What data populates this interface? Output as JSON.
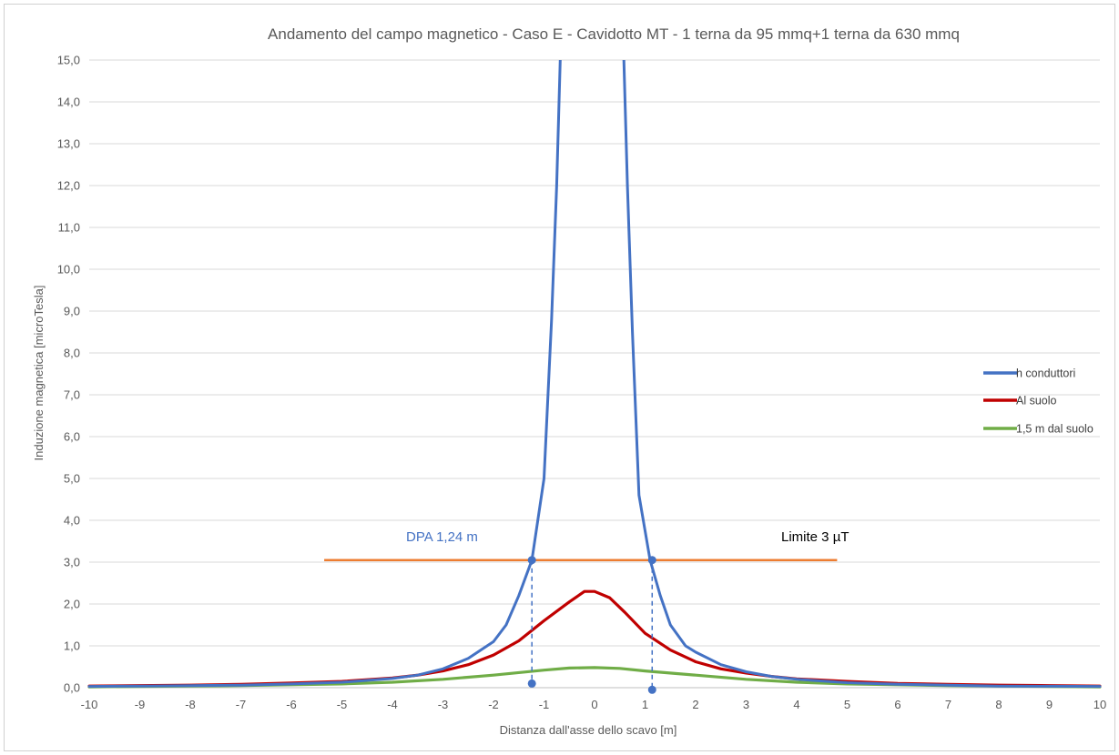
{
  "chart_data": {
    "type": "line",
    "title": "Andamento del  campo magnetico - Caso E - Cavidotto MT - 1 terna da 95 mmq+1 terna da 630 mmq",
    "xlabel": "Distanza dall'asse dello scavo [m]",
    "ylabel": "Induzione magnetica [microTesla]",
    "xlim": [
      -10,
      10
    ],
    "ylim": [
      0,
      15
    ],
    "x_ticks": [
      "-10",
      "-9",
      "-8",
      "-7",
      "-6",
      "-5",
      "-4",
      "-3",
      "-2",
      "-1",
      "0",
      "1",
      "2",
      "3",
      "4",
      "5",
      "6",
      "7",
      "8",
      "9",
      "10"
    ],
    "y_ticks": [
      "0,0",
      "1,0",
      "2,0",
      "3,0",
      "4,0",
      "5,0",
      "6,0",
      "7,0",
      "8,0",
      "9,0",
      "10,0",
      "11,0",
      "12,0",
      "13,0",
      "14,0",
      "15,0"
    ],
    "grid": "horizontal",
    "legend_position": "right",
    "series": [
      {
        "name": "h conduttori",
        "color": "#4472c4",
        "points": [
          [
            -10,
            0.03
          ],
          [
            -9,
            0.04
          ],
          [
            -8,
            0.05
          ],
          [
            -7,
            0.06
          ],
          [
            -6,
            0.09
          ],
          [
            -5,
            0.13
          ],
          [
            -4,
            0.22
          ],
          [
            -3.5,
            0.3
          ],
          [
            -3,
            0.45
          ],
          [
            -2.5,
            0.7
          ],
          [
            -2,
            1.1
          ],
          [
            -1.75,
            1.5
          ],
          [
            -1.5,
            2.2
          ],
          [
            -1.24,
            3.05
          ],
          [
            -1.0,
            5.0
          ],
          [
            -0.85,
            8.8
          ],
          [
            -0.75,
            12.0
          ],
          [
            -0.68,
            15.0
          ],
          [
            null,
            null
          ],
          [
            0.58,
            15.0
          ],
          [
            0.65,
            12.0
          ],
          [
            0.75,
            8.5
          ],
          [
            0.88,
            4.6
          ],
          [
            1.1,
            3.05
          ],
          [
            1.3,
            2.2
          ],
          [
            1.5,
            1.5
          ],
          [
            1.8,
            1.0
          ],
          [
            2.0,
            0.85
          ],
          [
            2.5,
            0.55
          ],
          [
            3,
            0.38
          ],
          [
            3.5,
            0.27
          ],
          [
            4,
            0.2
          ],
          [
            5,
            0.12
          ],
          [
            6,
            0.08
          ],
          [
            7,
            0.06
          ],
          [
            8,
            0.04
          ],
          [
            9,
            0.035
          ],
          [
            10,
            0.03
          ]
        ]
      },
      {
        "name": "Al suolo",
        "color": "#c00000",
        "points": [
          [
            -10,
            0.04
          ],
          [
            -9,
            0.05
          ],
          [
            -8,
            0.06
          ],
          [
            -7,
            0.08
          ],
          [
            -6,
            0.11
          ],
          [
            -5,
            0.15
          ],
          [
            -4,
            0.23
          ],
          [
            -3.5,
            0.3
          ],
          [
            -3,
            0.4
          ],
          [
            -2.5,
            0.55
          ],
          [
            -2,
            0.78
          ],
          [
            -1.5,
            1.12
          ],
          [
            -1,
            1.6
          ],
          [
            -0.5,
            2.05
          ],
          [
            -0.2,
            2.3
          ],
          [
            0,
            2.3
          ],
          [
            0.3,
            2.15
          ],
          [
            0.6,
            1.8
          ],
          [
            1,
            1.3
          ],
          [
            1.5,
            0.9
          ],
          [
            2,
            0.62
          ],
          [
            2.5,
            0.45
          ],
          [
            3,
            0.35
          ],
          [
            3.5,
            0.27
          ],
          [
            4,
            0.21
          ],
          [
            5,
            0.15
          ],
          [
            6,
            0.1
          ],
          [
            7,
            0.08
          ],
          [
            8,
            0.06
          ],
          [
            9,
            0.05
          ],
          [
            10,
            0.04
          ]
        ]
      },
      {
        "name": "1,5 m dal suolo",
        "color": "#70ad47",
        "points": [
          [
            -10,
            0.02
          ],
          [
            -9,
            0.03
          ],
          [
            -8,
            0.04
          ],
          [
            -7,
            0.05
          ],
          [
            -6,
            0.07
          ],
          [
            -5,
            0.09
          ],
          [
            -4,
            0.13
          ],
          [
            -3,
            0.2
          ],
          [
            -2,
            0.3
          ],
          [
            -1,
            0.42
          ],
          [
            -0.5,
            0.47
          ],
          [
            0,
            0.48
          ],
          [
            0.5,
            0.46
          ],
          [
            1,
            0.4
          ],
          [
            2,
            0.3
          ],
          [
            3,
            0.2
          ],
          [
            4,
            0.13
          ],
          [
            5,
            0.09
          ],
          [
            6,
            0.07
          ],
          [
            7,
            0.05
          ],
          [
            8,
            0.04
          ],
          [
            9,
            0.03
          ],
          [
            10,
            0.02
          ]
        ]
      }
    ],
    "limit_line": {
      "y": 3.05,
      "x_from": -5.35,
      "x_to": 4.8,
      "color": "#ed7d31"
    },
    "dpa_points": [
      {
        "x": -1.24,
        "y": 3.05,
        "foot_y": 0.1
      },
      {
        "x": 1.14,
        "y": 3.05,
        "foot_y": -0.05
      }
    ],
    "annotations": {
      "dpa_label": "DPA 1,24 m",
      "limit_label": "Limite 3 µT"
    }
  }
}
